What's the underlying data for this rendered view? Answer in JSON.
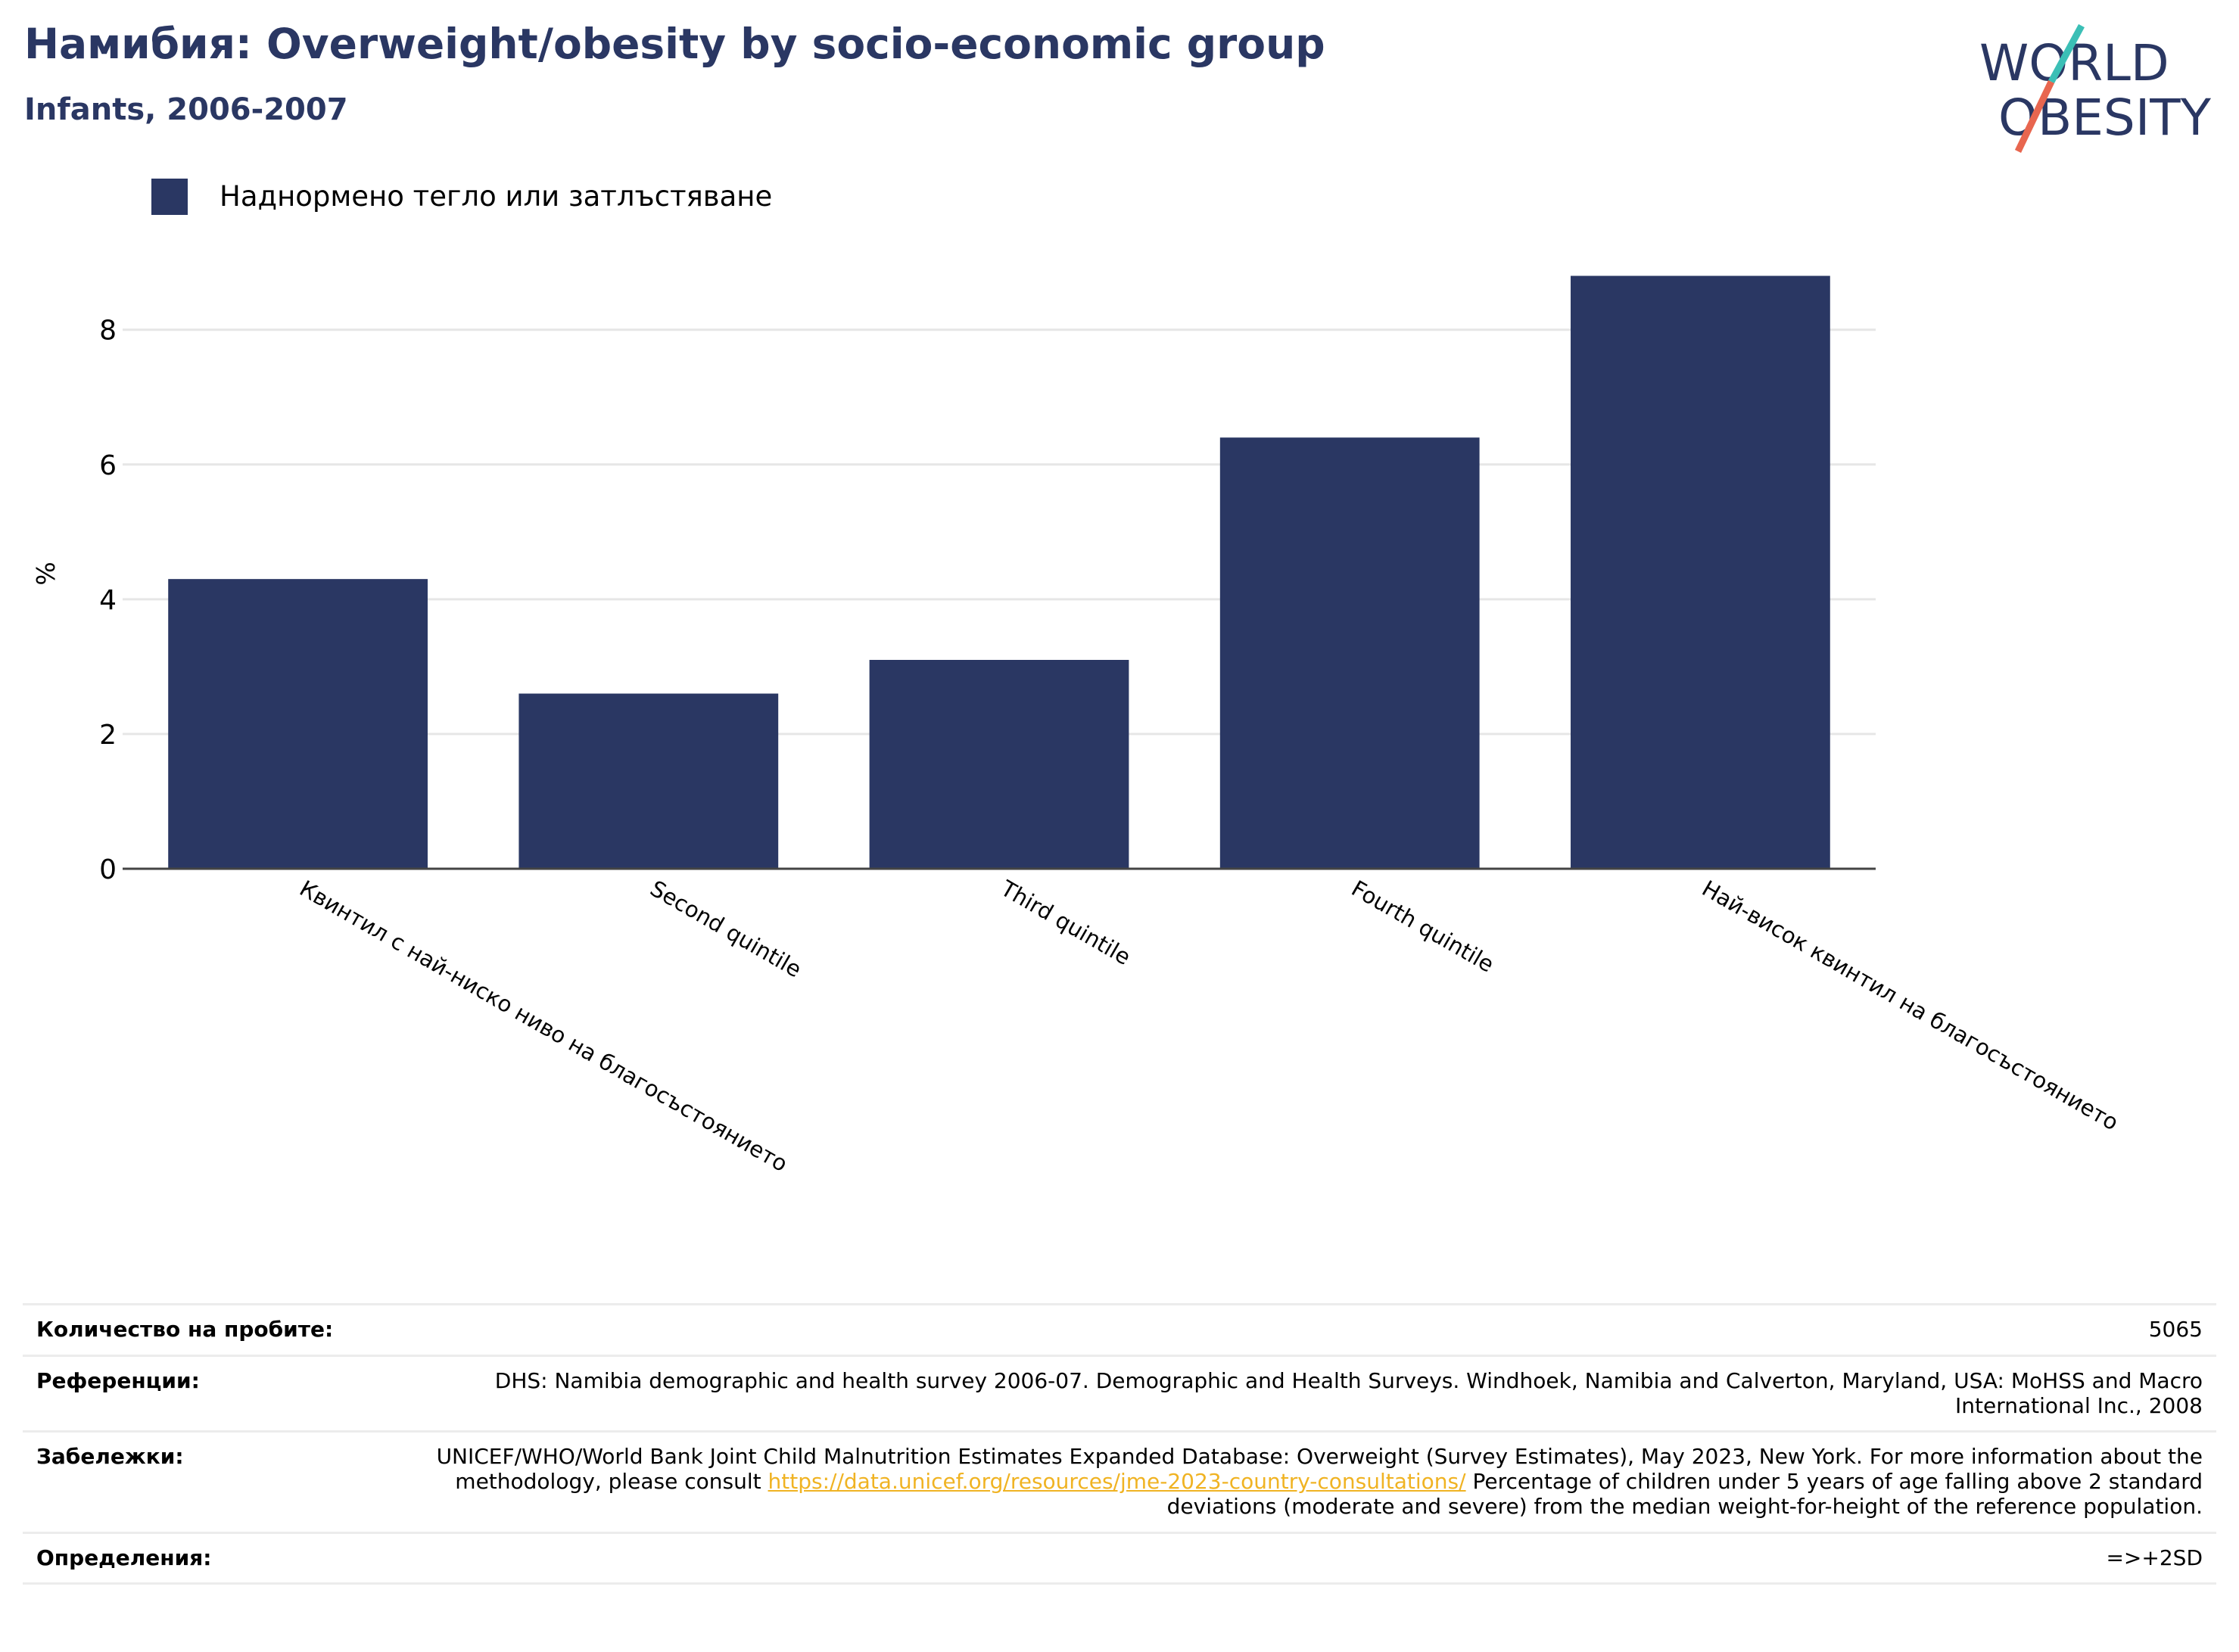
{
  "header": {
    "title": "Намибия: Overweight/obesity by socio-economic group",
    "subtitle": "Infants, 2006-2007"
  },
  "logo": {
    "line1": "WORLD",
    "line2": "OBESITY",
    "text_color": "#2a3763",
    "slash_colors": [
      "#3bbfb6",
      "#e8664f"
    ]
  },
  "legend": {
    "label": "Наднормено тегло или затлъстяване",
    "color": "#2a3763"
  },
  "chart_data": {
    "type": "bar",
    "title": "Намибия: Overweight/obesity by socio-economic group",
    "subtitle": "Infants, 2006-2007",
    "categories": [
      "Квинтил с най-ниско ниво на благосъстоянието",
      "Second quintile",
      "Third quintile",
      "Fourth quintile",
      "Най-висок квинтил на благосъстоянието"
    ],
    "series": [
      {
        "name": "Наднормено тегло или затлъстяване",
        "values": [
          4.3,
          2.6,
          3.1,
          6.4,
          8.8
        ],
        "color": "#2a3763"
      }
    ],
    "xlabel": "",
    "ylabel": "%",
    "ylim": [
      0,
      9.3
    ],
    "yticks": [
      0,
      2,
      4,
      6,
      8
    ],
    "grid": true,
    "legend_position": "top-left"
  },
  "info": {
    "sample_size_label": "Количество на пробите:",
    "sample_size_value": "5065",
    "references_label": "Референции:",
    "references_value": "DHS: Namibia demographic and health survey 2006-07. Demographic and Health Surveys. Windhoek, Namibia and Calverton, Maryland, USA: MoHSS and Macro International Inc., 2008",
    "notes_label": "Забележки:",
    "notes_before": "UNICEF/WHO/World Bank Joint Child Malnutrition Estimates Expanded Database: Overweight (Survey Estimates), May 2023, New York. For more information about the methodology, please consult ",
    "notes_link": "https://data.unicef.org/resources/jme-2023-country-consultations/",
    "notes_after": " Percentage of children under 5 years of age falling above 2 standard deviations (moderate and severe) from the median weight-for-height of the reference population.",
    "definitions_label": "Определения:",
    "definitions_value": "=>+2SD"
  }
}
